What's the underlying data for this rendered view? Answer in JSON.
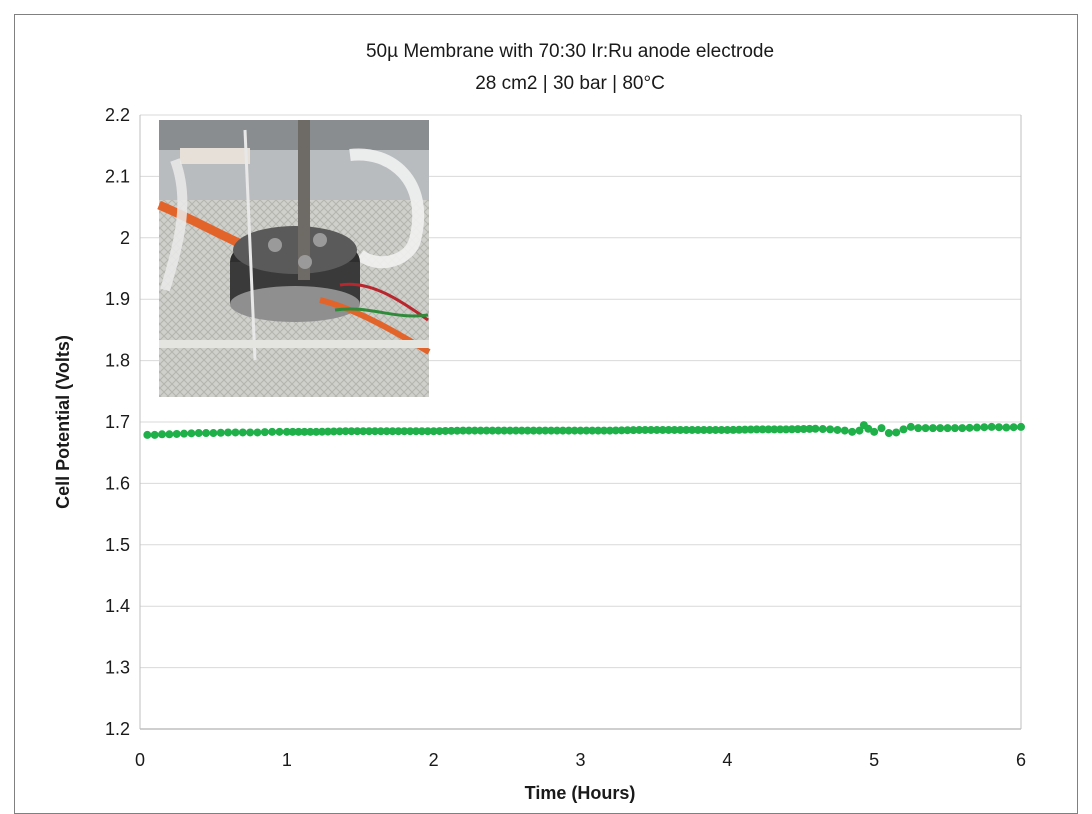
{
  "chart_data": {
    "type": "scatter",
    "title": "50µ Membrane with 70:30 Ir:Ru anode electrode",
    "subtitle": "28 cm2 | 30 bar | 80°C",
    "xlabel": "Time (Hours)",
    "ylabel": "Cell Potential (Volts)",
    "xlim": [
      0,
      6
    ],
    "ylim": [
      1.2,
      2.2
    ],
    "xticks": [
      "0",
      "1",
      "2",
      "3",
      "4",
      "5",
      "6"
    ],
    "yticks": [
      "1.2",
      "1.3",
      "1.4",
      "1.5",
      "1.6",
      "1.7",
      "1.8",
      "1.9",
      "2",
      "2.1",
      "2.2"
    ],
    "grid": "horizontal",
    "legend": "none",
    "series_color": "#1fb04a",
    "grid_color": "#d9d9d9",
    "inset": "photo of electrolyzer test cell with tubing and wires, upper-left of plot area",
    "series": [
      {
        "x": [
          0.05,
          0.1,
          0.15,
          0.2,
          0.3,
          0.4,
          0.5,
          0.6,
          0.7,
          0.8,
          0.9,
          1.0,
          1.2,
          1.4,
          1.6,
          1.8,
          2.0,
          2.2,
          2.4,
          2.6,
          2.8,
          3.0,
          3.2,
          3.4,
          3.6,
          3.8,
          4.0,
          4.2,
          4.4,
          4.6,
          4.7,
          4.8,
          4.85,
          4.9,
          4.93,
          4.96,
          5.0,
          5.05,
          5.1,
          5.15,
          5.2,
          5.25,
          5.3,
          5.4,
          5.5,
          5.6,
          5.7,
          5.8,
          5.9,
          6.0
        ],
        "y": [
          1.679,
          1.679,
          1.68,
          1.68,
          1.681,
          1.682,
          1.682,
          1.683,
          1.683,
          1.683,
          1.684,
          1.684,
          1.684,
          1.685,
          1.685,
          1.685,
          1.685,
          1.686,
          1.686,
          1.686,
          1.686,
          1.686,
          1.686,
          1.687,
          1.687,
          1.687,
          1.687,
          1.688,
          1.688,
          1.689,
          1.688,
          1.686,
          1.684,
          1.686,
          1.695,
          1.689,
          1.684,
          1.69,
          1.682,
          1.683,
          1.688,
          1.692,
          1.69,
          1.69,
          1.69,
          1.69,
          1.691,
          1.692,
          1.691,
          1.692
        ]
      }
    ]
  }
}
